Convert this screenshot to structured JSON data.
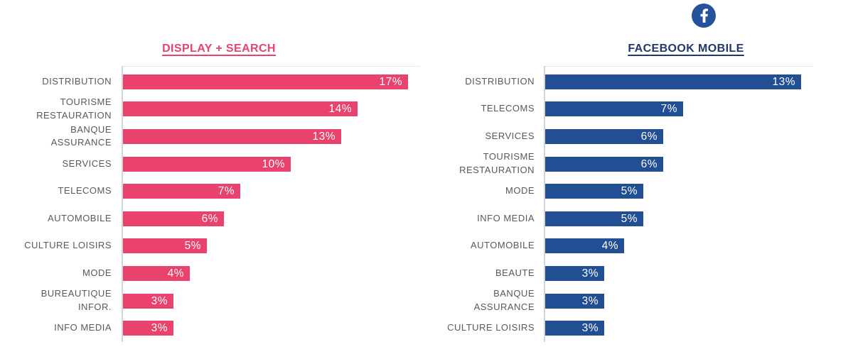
{
  "page": {
    "background": "#ffffff",
    "label_color": "#595959",
    "axis_color": "#d4d4d4"
  },
  "header": {
    "facebook_icon": "facebook-icon",
    "facebook_icon_color": "#24529c"
  },
  "chart_data": [
    {
      "type": "bar",
      "orientation": "horizontal",
      "title": "DISPLAY + SEARCH",
      "title_color": "#e8426d",
      "bar_color": "#e8426d",
      "unit": "%",
      "xlim": [
        0,
        17
      ],
      "grid": false,
      "legend": "none",
      "value_label_position": "inside-end",
      "categories": [
        "DISTRIBUTION",
        "TOURISME\nRESTAURATION",
        "BANQUE\nASSURANCE",
        "SERVICES",
        "TELECOMS",
        "AUTOMOBILE",
        "CULTURE LOISIRS",
        "MODE",
        "BUREAUTIQUE\nINFOR.",
        "INFO MEDIA"
      ],
      "values": [
        17,
        14,
        13,
        10,
        7,
        6,
        5,
        4,
        3,
        3
      ],
      "value_labels": [
        "17%",
        "14%",
        "13%",
        "10%",
        "7%",
        "6%",
        "5%",
        "4%",
        "3%",
        "3%"
      ]
    },
    {
      "type": "bar",
      "orientation": "horizontal",
      "title": "FACEBOOK MOBILE",
      "title_color": "#21386b",
      "bar_color": "#224f94",
      "icon": "facebook-icon",
      "icon_color": "#24529c",
      "unit": "%",
      "xlim": [
        0,
        13
      ],
      "grid": false,
      "legend": "none",
      "value_label_position": "inside-end",
      "categories": [
        "DISTRIBUTION",
        "TELECOMS",
        "SERVICES",
        "TOURISME\nRESTAURATION",
        "MODE",
        "INFO MEDIA",
        "AUTOMOBILE",
        "BEAUTE",
        "BANQUE\nASSURANCE",
        "CULTURE LOISIRS"
      ],
      "values": [
        13,
        7,
        6,
        6,
        5,
        5,
        4,
        3,
        3,
        3
      ],
      "value_labels": [
        "13%",
        "7%",
        "6%",
        "6%",
        "5%",
        "5%",
        "4%",
        "3%",
        "3%",
        "3%"
      ]
    }
  ]
}
